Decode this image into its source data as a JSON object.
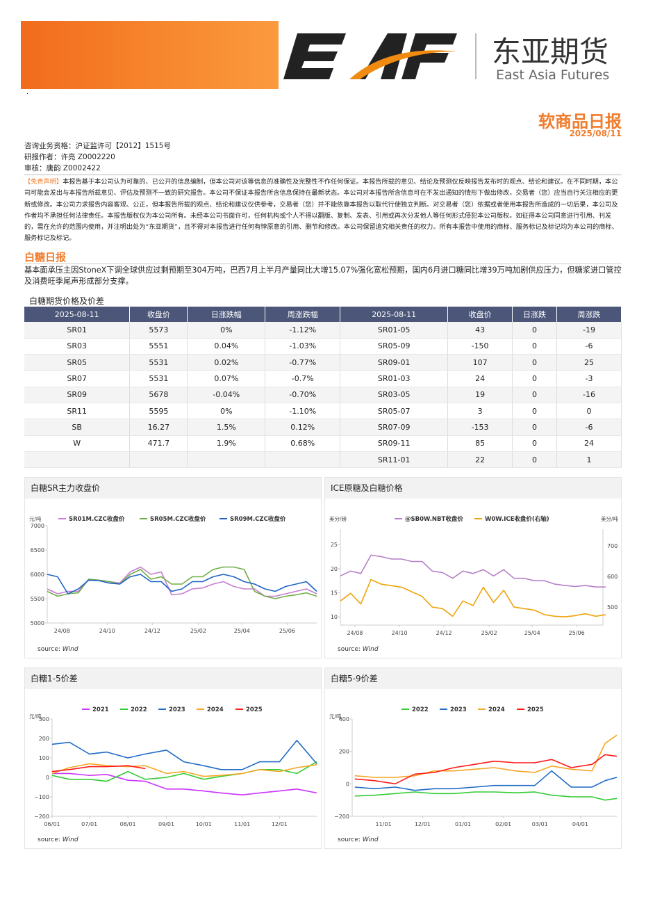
{
  "header": {
    "logo_text": "EAF",
    "company_cn": "东亚期货",
    "company_en": "East Asia Futures",
    "report_title": "软商品日报",
    "date": "2025/08/11",
    "dot": "·"
  },
  "info": {
    "license": "咨询业务资格：沪证监许可【2012】1515号",
    "author": "研报作者：许亮 Z0002220",
    "reviewer": "审核：唐韵 Z0002422"
  },
  "disclaimer": {
    "tag": "【免责声明】",
    "text": "本报告基于本公司认为可靠的、已公开的信息编制，但本公司对该等信息的准确性及完整性不作任何保证。本报告所载的意见、结论及预测仅反映报告发布时的观点、结论和建议。在不同时期，本公司可能会发出与本报告所载意见、评估及预测不一致的研究报告。本公司不保证本报告所含信息保持在最新状态。本公司对本报告所含信息可在不发出通知的情形下做出修改，交易者（您）应当自行关注相应的更新或修改。本公司力求报告内容客观、公正，但本报告所载的观点、结论和建议仅供参考，交易者（您）并不能依靠本报告以取代行使独立判断。对交易者（您）依据或者使用本报告所造成的一切后果，本公司及作者均不承担任何法律责任。本报告版权仅为本公司所有。未经本公司书面许可，任何机构或个人不得以翻版、复制、发表、引用或再次分发他人等任何形式侵犯本公司版权。如征得本公司同意进行引用、刊发的，需在允许的范围内使用，并注明出处为“东亚期货”，且不得对本报告进行任何有悖原意的引用、删节和修改。本公司保留追究相关责任的权力。所有本报告中使用的商标、服务标记及标记均为本公司的商标、服务标记及标记。"
  },
  "section": {
    "title": "白糖日报",
    "summary": "基本面承压主因StoneX下调全球供应过剩预期至304万吨，巴西7月上半月产量同比大增15.07%强化宽松预期，国内6月进口糖同比增39万吨加剧供应压力，但糖浆进口管控及消费旺季尾声形成部分支撑。"
  },
  "table": {
    "title": "白糖期货价格及价差",
    "headers": [
      "2025-08-11",
      "收盘价",
      "日涨跌幅",
      "周涨跌幅",
      "2025-08-11",
      "收盘价",
      "日涨跌",
      "周涨跌"
    ],
    "rows": [
      [
        "SR01",
        "5573",
        "0%",
        "-1.12%",
        "SR01-05",
        "43",
        "0",
        "-19"
      ],
      [
        "SR03",
        "5551",
        "0.04%",
        "-1.03%",
        "SR05-09",
        "-150",
        "0",
        "-6"
      ],
      [
        "SR05",
        "5531",
        "0.02%",
        "-0.77%",
        "SR09-01",
        "107",
        "0",
        "25"
      ],
      [
        "SR07",
        "5531",
        "0.07%",
        "-0.7%",
        "SR01-03",
        "24",
        "0",
        "-3"
      ],
      [
        "SR09",
        "5678",
        "-0.04%",
        "-0.70%",
        "SR03-05",
        "19",
        "0",
        "-16"
      ],
      [
        "SR11",
        "5595",
        "0%",
        "-1.10%",
        "SR05-07",
        "3",
        "0",
        "0"
      ],
      [
        "SB",
        "16.27",
        "1.5%",
        "0.12%",
        "SR07-09",
        "-153",
        "0",
        "-6"
      ],
      [
        "W",
        "471.7",
        "1.9%",
        "0.68%",
        "SR09-11",
        "85",
        "0",
        "24"
      ],
      [
        "",
        "",
        "",
        "",
        "SR11-01",
        "22",
        "0",
        "1"
      ]
    ]
  },
  "chart_data": [
    {
      "panel_title": "白糖SR主力收盘价",
      "type": "line",
      "unit": "元/吨",
      "ylim": [
        5000,
        7000
      ],
      "yticks": [
        5000,
        5500,
        6000,
        6500,
        7000
      ],
      "xticks": [
        "24/08",
        "24/10",
        "24/12",
        "25/02",
        "25/04",
        "25/06"
      ],
      "source": "Wind",
      "x": [
        "2024-07-12",
        "2024-07-26",
        "2024-08-09",
        "2024-08-23",
        "2024-09-06",
        "2024-09-20",
        "2024-10-04",
        "2024-10-18",
        "2024-11-01",
        "2024-11-15",
        "2024-11-29",
        "2024-12-13",
        "2024-12-27",
        "2025-01-10",
        "2025-01-24",
        "2025-02-07",
        "2025-02-21",
        "2025-03-07",
        "2025-03-21",
        "2025-04-04",
        "2025-04-18",
        "2025-05-02",
        "2025-05-16",
        "2025-05-30",
        "2025-06-13",
        "2025-06-27",
        "2025-07-11"
      ],
      "series": [
        {
          "name": "SR01M.CZC收盘价",
          "color": "#c77dd0",
          "values": [
            5700,
            5600,
            5650,
            5650,
            5900,
            5880,
            5850,
            5820,
            6050,
            6150,
            6000,
            6050,
            5580,
            5600,
            5700,
            5720,
            5800,
            5850,
            5750,
            5700,
            5700,
            5550,
            5550,
            5600,
            5650,
            5700,
            5600
          ]
        },
        {
          "name": "SR05M.CZC收盘价",
          "color": "#70ad47",
          "values": [
            5650,
            5550,
            5600,
            5620,
            5900,
            5880,
            5850,
            5800,
            6000,
            6100,
            5900,
            5950,
            5800,
            5800,
            5950,
            5950,
            6100,
            6150,
            6150,
            6100,
            5650,
            5550,
            5500,
            5550,
            5580,
            5620,
            5550
          ]
        },
        {
          "name": "SR09M.CZC收盘价",
          "color": "#1f63c6",
          "values": [
            6000,
            5950,
            5600,
            5700,
            5880,
            5870,
            5820,
            5800,
            5950,
            6000,
            5850,
            5850,
            5650,
            5700,
            5850,
            5850,
            5950,
            6000,
            5950,
            5850,
            5800,
            5700,
            5650,
            5750,
            5800,
            5850,
            5650
          ]
        }
      ]
    },
    {
      "panel_title": "ICE原糖及白糖价格",
      "type": "line",
      "unit": "美分/磅",
      "unit_right": "美分/吨",
      "ylim": [
        8.3,
        28.2
      ],
      "ylim_right": [
        441,
        755
      ],
      "yticks": [
        10,
        15,
        20,
        25
      ],
      "yticks_right": [
        500,
        600,
        700
      ],
      "xticks": [
        "24/08",
        "24/10",
        "24/12",
        "25/02",
        "25/04",
        "25/06"
      ],
      "source": "Wind",
      "x": [
        "2024-07-12",
        "2024-07-26",
        "2024-08-09",
        "2024-08-23",
        "2024-09-06",
        "2024-09-20",
        "2024-10-04",
        "2024-10-18",
        "2024-11-01",
        "2024-11-15",
        "2024-11-29",
        "2024-12-13",
        "2024-12-27",
        "2025-01-10",
        "2025-01-24",
        "2025-02-07",
        "2025-02-21",
        "2025-03-07",
        "2025-03-21",
        "2025-04-04",
        "2025-04-18",
        "2025-05-02",
        "2025-05-16",
        "2025-05-30",
        "2025-06-13",
        "2025-06-27",
        "2025-07-11"
      ],
      "series": [
        {
          "name": "@SB0W.NBT收盘价",
          "color": "#b77fc8",
          "axis": "left",
          "values": [
            18.5,
            19.5,
            19,
            22.8,
            22.5,
            22,
            22,
            21.5,
            21.5,
            19.5,
            19.2,
            18,
            19.5,
            19,
            19.8,
            18.5,
            19.8,
            18,
            18,
            17.5,
            17.5,
            16.8,
            16.5,
            16.3,
            16.5,
            16.2,
            16.2
          ]
        },
        {
          "name": "W0W.ICE收盘价(右轴)",
          "color": "#f0a30a",
          "axis": "right",
          "values": [
            520,
            545,
            510,
            590,
            575,
            570,
            565,
            550,
            535,
            500,
            495,
            470,
            520,
            505,
            565,
            515,
            555,
            500,
            495,
            490,
            475,
            470,
            468,
            472,
            478,
            470,
            475
          ]
        }
      ]
    },
    {
      "panel_title": "白糖1-5价差",
      "type": "line",
      "unit": "元/吨",
      "ylim": [
        -200,
        300
      ],
      "yticks": [
        -200,
        -100,
        0,
        100,
        200,
        300
      ],
      "xticks": [
        "06/01",
        "07/01",
        "08/01",
        "09/01",
        "10/01",
        "11/01",
        "12/01"
      ],
      "source": "Wind",
      "x": [
        "06/01",
        "06/15",
        "07/01",
        "07/15",
        "08/01",
        "08/15",
        "09/01",
        "09/15",
        "10/01",
        "10/15",
        "11/01",
        "11/15",
        "12/01",
        "12/15",
        "12/31"
      ],
      "series": [
        {
          "name": "2021",
          "color": "#cc33ff",
          "values": [
            20,
            20,
            10,
            15,
            -15,
            -20,
            -60,
            -60,
            -70,
            -80,
            -90,
            -80,
            -70,
            -60,
            -80
          ]
        },
        {
          "name": "2022",
          "color": "#33cc33",
          "values": [
            10,
            -10,
            -10,
            -20,
            30,
            -10,
            0,
            20,
            -10,
            5,
            20,
            40,
            40,
            20,
            80
          ]
        },
        {
          "name": "2023",
          "color": "#1f6bc6",
          "values": [
            170,
            180,
            120,
            130,
            100,
            120,
            140,
            80,
            60,
            40,
            40,
            80,
            80,
            190,
            70
          ]
        },
        {
          "name": "2024",
          "color": "#f5a623",
          "values": [
            20,
            50,
            70,
            60,
            55,
            60,
            20,
            30,
            5,
            10,
            20,
            40,
            30,
            50,
            65
          ]
        },
        {
          "name": "2025",
          "color": "#ff1a1a",
          "values": [
            30,
            40,
            55,
            55,
            60,
            45,
            null,
            null,
            null,
            null,
            null,
            null,
            null,
            null,
            null
          ]
        }
      ]
    },
    {
      "panel_title": "白糖5-9价差",
      "type": "line",
      "unit": "元/吨",
      "ylim": [
        -200,
        400
      ],
      "yticks": [
        -200,
        0,
        200,
        400
      ],
      "xticks": [
        "11/01",
        "12/01",
        "01/01",
        "02/01",
        "03/01",
        "04/01"
      ],
      "source": "Wind",
      "x": [
        "10/10",
        "10/25",
        "11/10",
        "11/25",
        "12/10",
        "12/25",
        "01/10",
        "01/25",
        "02/10",
        "02/25",
        "03/10",
        "03/25",
        "04/10",
        "04/20",
        "04/29"
      ],
      "series": [
        {
          "name": "2022",
          "color": "#33cc33",
          "values": [
            -75,
            -70,
            -60,
            -50,
            -60,
            -60,
            -50,
            -50,
            -55,
            -50,
            -70,
            -80,
            -80,
            -100,
            -90
          ]
        },
        {
          "name": "2023",
          "color": "#1f6bc6",
          "values": [
            -20,
            -30,
            -20,
            -40,
            -30,
            -30,
            -20,
            -10,
            -10,
            -10,
            80,
            -20,
            -20,
            20,
            40
          ]
        },
        {
          "name": "2024",
          "color": "#f5a623",
          "values": [
            50,
            40,
            40,
            50,
            80,
            80,
            90,
            100,
            80,
            70,
            110,
            90,
            80,
            250,
            300
          ]
        },
        {
          "name": "2025",
          "color": "#ff1a1a",
          "values": [
            30,
            20,
            0,
            60,
            70,
            100,
            120,
            140,
            130,
            130,
            150,
            100,
            120,
            180,
            170
          ]
        }
      ]
    }
  ],
  "colors": {
    "accent": "#f07c2d",
    "table_header": "#4b5679"
  }
}
